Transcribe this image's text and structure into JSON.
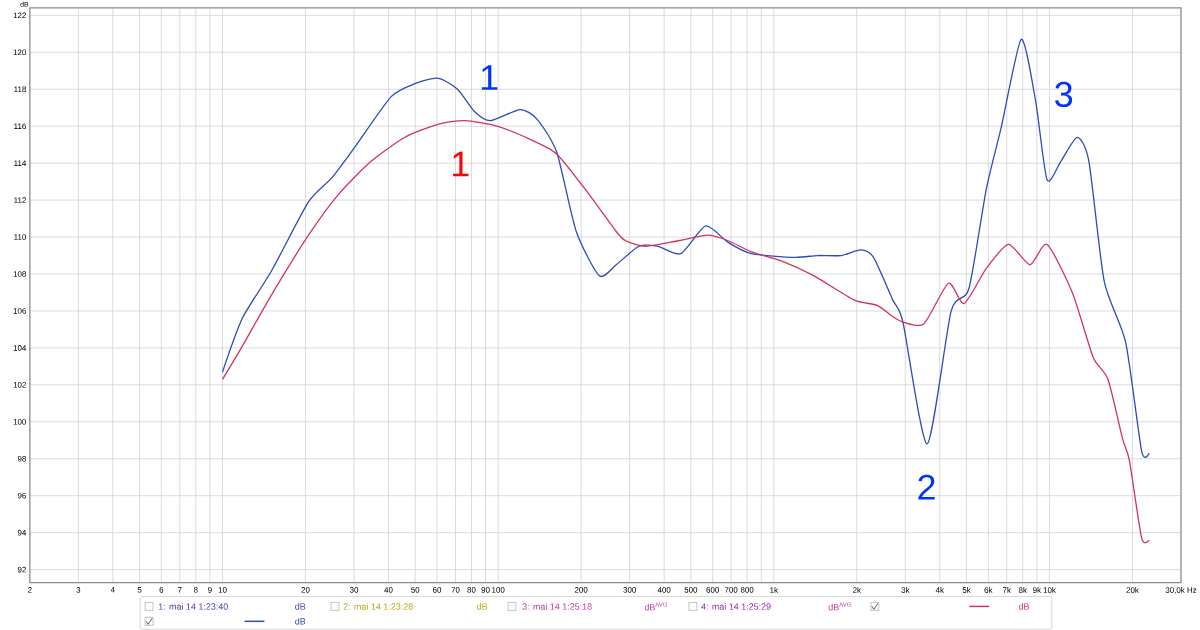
{
  "chart_data": {
    "type": "line",
    "ylabel": "dB",
    "xlim": [
      2,
      30000
    ],
    "ylim": [
      91.3,
      122.4
    ],
    "log": "x",
    "grid": true,
    "xticks": [
      2,
      3,
      4,
      5,
      6,
      7,
      8,
      9,
      10,
      20,
      30,
      40,
      50,
      60,
      70,
      80,
      90,
      100,
      200,
      300,
      400,
      500,
      600,
      700,
      800,
      {
        "value": 900,
        "label": null
      },
      {
        "value": 1000,
        "label": "1k"
      },
      {
        "value": 2000,
        "label": "2k"
      },
      {
        "value": 3000,
        "label": "3k"
      },
      {
        "value": 4000,
        "label": "4k"
      },
      {
        "value": 5000,
        "label": "5k"
      },
      {
        "value": 6000,
        "label": "6k"
      },
      {
        "value": 7000,
        "label": "7k"
      },
      {
        "value": 8000,
        "label": "8k"
      },
      {
        "value": 9000,
        "label": "9k"
      },
      {
        "value": 10000,
        "label": "10k"
      },
      {
        "value": 20000,
        "label": "20k"
      },
      {
        "value": 30000,
        "label": "30,0k Hz"
      }
    ],
    "yticks": [
      92,
      94,
      96,
      98,
      100,
      102,
      104,
      106,
      108,
      110,
      112,
      114,
      116,
      118,
      120,
      122
    ],
    "series": [
      {
        "color": "#2a4cbc",
        "x": [
          10,
          11.8,
          15.1,
          20.5,
          24.9,
          30.3,
          40.9,
          49.9,
          60.4,
          71.2,
          82,
          93.8,
          120,
          138,
          163,
          192,
          233,
          268,
          324,
          380,
          460,
          566,
          684,
          830,
          1190,
          1440,
          1750,
          2070,
          2300,
          2700,
          2940,
          3600,
          4400,
          5100,
          5900,
          6700,
          7900,
          8900,
          9800,
          11000,
          12600,
          13900,
          15800,
          18900,
          21600,
          23000
        ],
        "values": [
          102.7,
          105.6,
          108.2,
          111.9,
          113.2,
          114.9,
          117.6,
          118.3,
          118.6,
          118.0,
          116.8,
          116.3,
          116.9,
          116.4,
          114.6,
          110.3,
          107.9,
          108.5,
          109.5,
          109.5,
          109.1,
          110.6,
          109.7,
          109.1,
          108.9,
          109.0,
          109.0,
          109.3,
          108.9,
          106.6,
          105.4,
          98.8,
          106.0,
          107.2,
          112.6,
          116.0,
          120.7,
          117.4,
          113.1,
          114.1,
          115.4,
          114.1,
          107.6,
          104.3,
          98.4,
          98.3
        ]
      },
      {
        "color": "#d1345b",
        "x": [
          10,
          11.8,
          15.1,
          20.5,
          26.3,
          34.6,
          45.9,
          60.4,
          75.5,
          99,
          130,
          163,
          214,
          268,
          290,
          343,
          450,
          577,
          684,
          830,
          1070,
          1400,
          1950,
          2370,
          2700,
          2940,
          3500,
          4300,
          4900,
          5900,
          7100,
          8500,
          9800,
          12100,
          14400,
          16300,
          18400,
          19500,
          21600,
          23000
        ],
        "values": [
          102.3,
          104.1,
          106.9,
          110.1,
          112.3,
          114.1,
          115.4,
          116.1,
          116.3,
          116.0,
          115.3,
          114.5,
          112.3,
          110.3,
          109.8,
          109.5,
          109.8,
          110.1,
          109.8,
          109.2,
          108.7,
          107.9,
          106.6,
          106.3,
          105.7,
          105.4,
          105.3,
          107.5,
          106.4,
          108.3,
          109.6,
          108.5,
          109.6,
          107.0,
          103.5,
          102.3,
          99.1,
          97.9,
          93.7,
          93.6
        ]
      }
    ],
    "annotations": [
      "1",
      "1",
      "2",
      "3",
      "1: mai 14 1:23:40",
      "dB",
      "2: mai 14 1:23:28",
      "dB",
      "3: mai 14 1:25:18",
      "dB$^{AVG}$",
      "4: mai 14 1:25:29",
      "dB$^{AVG}$",
      "dB",
      "dB"
    ]
  }
}
